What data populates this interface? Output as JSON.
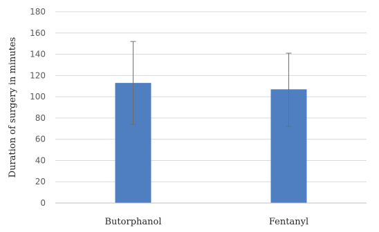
{
  "chart_data": {
    "type": "bar",
    "categories": [
      "Butorphanol",
      "Fentanyl"
    ],
    "values": [
      113,
      107
    ],
    "error_bars": {
      "upper": [
        152,
        141
      ],
      "lower": [
        74,
        72
      ]
    },
    "title": "",
    "xlabel": "",
    "ylabel": "Duration of surgery in minutes",
    "ylim": [
      0,
      180
    ],
    "yticks": [
      "0",
      "20",
      "40",
      "60",
      "80",
      "100",
      "120",
      "140",
      "160",
      "180"
    ],
    "grid": true,
    "legend": "none",
    "colors": {
      "bar": "#4f7fc0",
      "error_bar": "#6e6e6e",
      "grid": "#d9d9d9",
      "axis": "#bfbfbf"
    }
  }
}
